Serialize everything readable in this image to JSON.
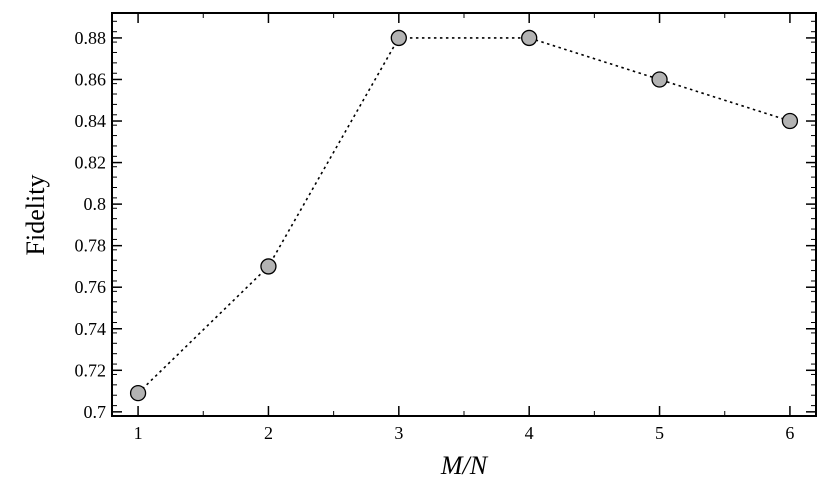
{
  "chart_data": {
    "type": "line",
    "title": "",
    "xlabel": "M/N",
    "ylabel": "Fidelity",
    "x": [
      1,
      2,
      3,
      4,
      5,
      6
    ],
    "xticks": [
      "1",
      "2",
      "3",
      "4",
      "5",
      "6"
    ],
    "yticks": [
      "0.7",
      "0.72",
      "0.74",
      "0.76",
      "0.78",
      "0.8",
      "0.82",
      "0.84",
      "0.86",
      "0.88"
    ],
    "xlim": [
      0.8,
      6.2
    ],
    "ylim": [
      0.698,
      0.892
    ],
    "grid": false,
    "series": [
      {
        "values": [
          0.709,
          0.77,
          0.88,
          0.88,
          0.86,
          0.84
        ],
        "line_style": "dotted",
        "marker": "circle",
        "marker_color": "#b3b3b3"
      }
    ]
  }
}
